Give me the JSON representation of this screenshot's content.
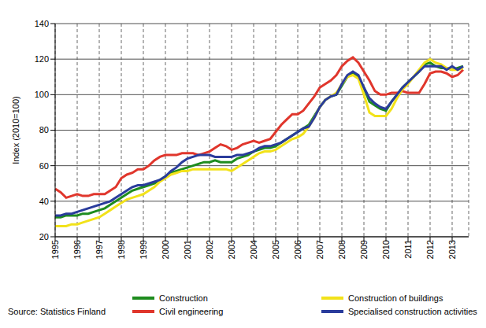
{
  "chart_data": {
    "type": "line",
    "y_label": "Index (2010=100)",
    "annotations": [
      "Source: Statistics Finland"
    ],
    "x": [
      1995,
      1995.25,
      1995.5,
      1995.75,
      1996,
      1996.25,
      1996.5,
      1996.75,
      1997,
      1997.25,
      1997.5,
      1997.75,
      1998,
      1998.25,
      1998.5,
      1998.75,
      1999,
      1999.25,
      1999.5,
      1999.75,
      2000,
      2000.25,
      2000.5,
      2000.75,
      2001,
      2001.25,
      2001.5,
      2001.75,
      2002,
      2002.25,
      2002.5,
      2002.75,
      2003,
      2003.25,
      2003.5,
      2003.75,
      2004,
      2004.25,
      2004.5,
      2004.75,
      2005,
      2005.25,
      2005.5,
      2005.75,
      2006,
      2006.25,
      2006.5,
      2006.75,
      2007,
      2007.25,
      2007.5,
      2007.75,
      2008,
      2008.25,
      2008.5,
      2008.75,
      2009,
      2009.25,
      2009.5,
      2009.75,
      2010,
      2010.25,
      2010.5,
      2010.75,
      2011,
      2011.25,
      2011.5,
      2011.75,
      2012,
      2012.25,
      2012.5,
      2012.75,
      2013,
      2013.25,
      2013.5
    ],
    "series": [
      {
        "name": "Construction",
        "color": "#1e8c1e",
        "values": [
          31,
          31,
          32,
          32,
          32,
          33,
          33,
          34,
          35,
          36,
          38,
          40,
          42,
          44,
          46,
          47,
          48,
          49,
          50,
          52,
          54,
          56,
          57,
          58,
          59,
          60,
          61,
          62,
          62,
          63,
          62,
          62,
          62,
          64,
          65,
          66,
          68,
          69,
          70,
          70,
          71,
          73,
          75,
          77,
          79,
          81,
          83,
          88,
          93,
          97,
          99,
          100,
          105,
          110,
          112,
          110,
          104,
          96,
          94,
          92,
          91,
          96,
          100,
          104,
          107,
          110,
          113,
          117,
          118,
          116,
          115,
          115,
          114,
          115,
          116
        ]
      },
      {
        "name": "Civil engineering",
        "color": "#e0362c",
        "values": [
          47,
          45,
          42,
          43,
          44,
          43,
          43,
          44,
          44,
          44,
          46,
          48,
          53,
          55,
          56,
          58,
          58,
          60,
          63,
          65,
          66,
          66,
          66,
          67,
          67,
          67,
          66,
          67,
          68,
          70,
          72,
          71,
          69,
          70,
          72,
          73,
          74,
          73,
          74,
          75,
          79,
          83,
          86,
          89,
          89,
          91,
          95,
          99,
          104,
          106,
          108,
          111,
          116,
          119,
          121,
          118,
          113,
          108,
          102,
          100,
          100,
          101,
          101,
          102,
          101,
          101,
          101,
          106,
          112,
          113,
          113,
          112,
          110,
          111,
          114
        ]
      },
      {
        "name": "Construction of buildings",
        "color": "#f2e21a",
        "values": [
          26,
          26,
          26,
          27,
          27,
          28,
          29,
          30,
          31,
          33,
          35,
          37,
          39,
          41,
          42,
          43,
          44,
          46,
          48,
          51,
          53,
          55,
          56,
          57,
          57,
          58,
          58,
          58,
          58,
          58,
          58,
          58,
          57,
          59,
          61,
          63,
          65,
          67,
          68,
          68,
          69,
          71,
          73,
          75,
          76,
          78,
          82,
          87,
          93,
          97,
          99,
          101,
          106,
          110,
          111,
          109,
          100,
          90,
          88,
          88,
          88,
          92,
          98,
          103,
          106,
          110,
          114,
          118,
          120,
          118,
          117,
          115,
          114,
          114,
          115
        ]
      },
      {
        "name": "Specialised construction activities",
        "color": "#2a3c9c",
        "values": [
          32,
          32,
          33,
          33,
          34,
          35,
          36,
          37,
          38,
          39,
          40,
          42,
          44,
          46,
          48,
          49,
          49,
          50,
          51,
          52,
          54,
          57,
          59,
          62,
          64,
          65,
          66,
          66,
          66,
          65,
          65,
          65,
          65,
          66,
          66,
          67,
          68,
          70,
          71,
          71,
          72,
          73,
          75,
          77,
          79,
          81,
          82,
          87,
          93,
          97,
          99,
          100,
          106,
          111,
          113,
          111,
          104,
          98,
          95,
          93,
          92,
          96,
          100,
          104,
          107,
          110,
          113,
          116,
          116,
          116,
          116,
          114,
          116,
          114,
          116
        ]
      }
    ],
    "xlim": [
      1995,
      2013.75
    ],
    "xticks": [
      1995,
      1996,
      1997,
      1998,
      1999,
      2000,
      2001,
      2002,
      2003,
      2004,
      2005,
      2006,
      2007,
      2008,
      2009,
      2010,
      2011,
      2012,
      2013
    ],
    "ylim": [
      20,
      140
    ],
    "yticks": [
      20,
      40,
      60,
      80,
      100,
      120,
      140
    ],
    "grid": true,
    "legend": "bottom"
  }
}
